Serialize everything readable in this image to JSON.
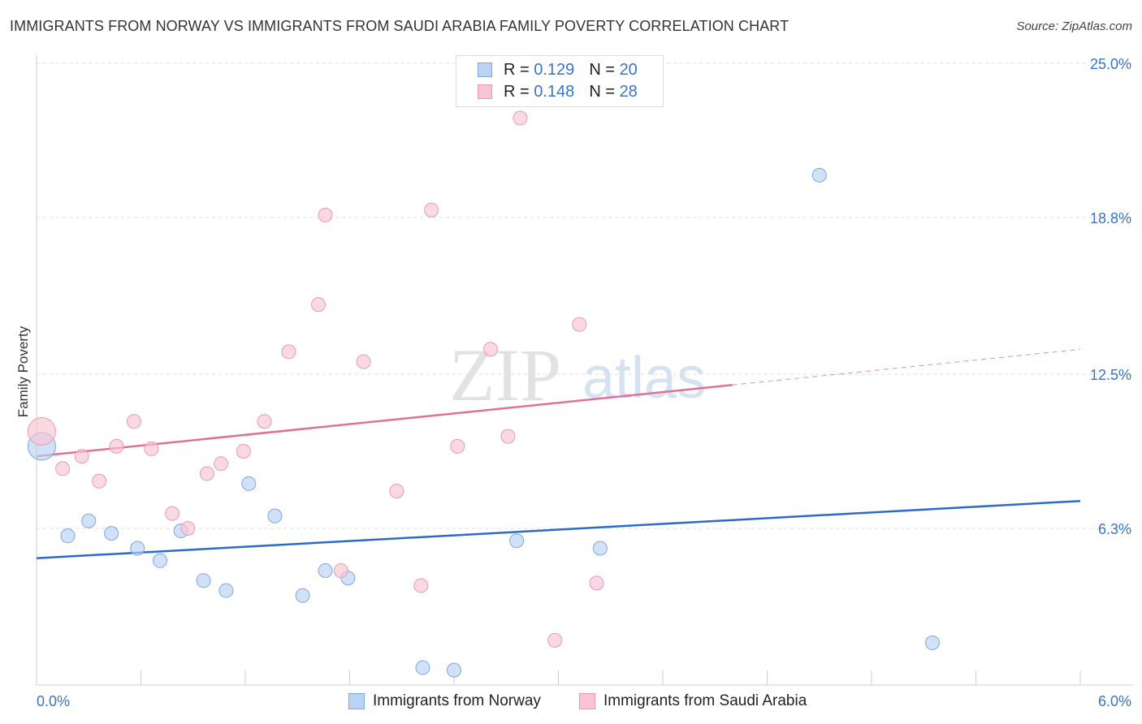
{
  "title": "IMMIGRANTS FROM NORWAY VS IMMIGRANTS FROM SAUDI ARABIA FAMILY POVERTY CORRELATION CHART",
  "source": "Source: ZipAtlas.com",
  "watermark": {
    "zip": "ZIP",
    "atlas": "atlas"
  },
  "legend": {
    "r_label": "R =",
    "n_label": "N =",
    "rows": [
      {
        "name": "Immigrants from Norway",
        "r": "0.129",
        "n": "20",
        "fill": "#b9d3f4",
        "stroke": "#7fa6dd"
      },
      {
        "name": "Immigrants from Saudi Arabia",
        "r": "0.148",
        "n": "28",
        "fill": "#f9c5d3",
        "stroke": "#e99ab2"
      }
    ]
  },
  "chart_data": {
    "type": "scatter",
    "title": "IMMIGRANTS FROM NORWAY VS IMMIGRANTS FROM SAUDI ARABIA FAMILY POVERTY CORRELATION CHART",
    "xlabel": "",
    "ylabel": "Family Poverty",
    "xlim": [
      0.0,
      6.0
    ],
    "ylim": [
      0.0,
      25.0
    ],
    "x_tick_labels": [
      "0.0%",
      "6.0%"
    ],
    "y_ticks": [
      {
        "value": 6.3,
        "label": "6.3%"
      },
      {
        "value": 12.5,
        "label": "12.5%"
      },
      {
        "value": 18.8,
        "label": "18.8%"
      },
      {
        "value": 25.0,
        "label": "25.0%"
      }
    ],
    "series": [
      {
        "name": "Immigrants from Norway",
        "color": "#7fa6dd",
        "fill": "#b9d3f4",
        "line_color": "#2a6ac8",
        "trend": {
          "x": [
            0.0,
            6.0
          ],
          "y": [
            5.1,
            7.4
          ]
        },
        "trend_solid_to": 6.0,
        "points": [
          {
            "x": 0.03,
            "y": 9.6,
            "big": true
          },
          {
            "x": 0.18,
            "y": 6.0
          },
          {
            "x": 0.3,
            "y": 6.6
          },
          {
            "x": 0.43,
            "y": 6.1
          },
          {
            "x": 0.58,
            "y": 5.5
          },
          {
            "x": 0.71,
            "y": 5.0
          },
          {
            "x": 0.83,
            "y": 6.2
          },
          {
            "x": 0.96,
            "y": 4.2
          },
          {
            "x": 1.09,
            "y": 3.8
          },
          {
            "x": 1.22,
            "y": 8.1
          },
          {
            "x": 1.37,
            "y": 6.8
          },
          {
            "x": 1.53,
            "y": 3.6
          },
          {
            "x": 1.66,
            "y": 4.6
          },
          {
            "x": 1.79,
            "y": 4.3
          },
          {
            "x": 2.22,
            "y": 0.7
          },
          {
            "x": 2.4,
            "y": 0.6
          },
          {
            "x": 2.76,
            "y": 5.8
          },
          {
            "x": 3.24,
            "y": 5.5
          },
          {
            "x": 4.5,
            "y": 20.5
          },
          {
            "x": 5.15,
            "y": 1.7
          }
        ]
      },
      {
        "name": "Immigrants from Saudi Arabia",
        "color": "#e99ab2",
        "fill": "#f9c5d3",
        "line_color": "#e0709a",
        "trend": {
          "x": [
            0.0,
            6.0
          ],
          "y": [
            9.2,
            13.5
          ]
        },
        "trend_solid_to": 4.0,
        "points": [
          {
            "x": 0.03,
            "y": 10.2,
            "big": true
          },
          {
            "x": 0.15,
            "y": 8.7
          },
          {
            "x": 0.26,
            "y": 9.2
          },
          {
            "x": 0.36,
            "y": 8.2
          },
          {
            "x": 0.46,
            "y": 9.6
          },
          {
            "x": 0.56,
            "y": 10.6
          },
          {
            "x": 0.66,
            "y": 9.5
          },
          {
            "x": 0.78,
            "y": 6.9
          },
          {
            "x": 0.87,
            "y": 6.3
          },
          {
            "x": 0.98,
            "y": 8.5
          },
          {
            "x": 1.06,
            "y": 8.9
          },
          {
            "x": 1.19,
            "y": 9.4
          },
          {
            "x": 1.31,
            "y": 10.6
          },
          {
            "x": 1.45,
            "y": 13.4
          },
          {
            "x": 1.62,
            "y": 15.3
          },
          {
            "x": 1.66,
            "y": 18.9
          },
          {
            "x": 1.75,
            "y": 4.6
          },
          {
            "x": 1.88,
            "y": 13.0
          },
          {
            "x": 2.07,
            "y": 7.8
          },
          {
            "x": 2.21,
            "y": 4.0
          },
          {
            "x": 2.27,
            "y": 19.1
          },
          {
            "x": 2.42,
            "y": 9.6
          },
          {
            "x": 2.61,
            "y": 13.5
          },
          {
            "x": 2.71,
            "y": 10.0
          },
          {
            "x": 2.78,
            "y": 22.8
          },
          {
            "x": 2.98,
            "y": 1.8
          },
          {
            "x": 3.12,
            "y": 14.5
          },
          {
            "x": 3.22,
            "y": 4.1
          }
        ]
      }
    ]
  }
}
